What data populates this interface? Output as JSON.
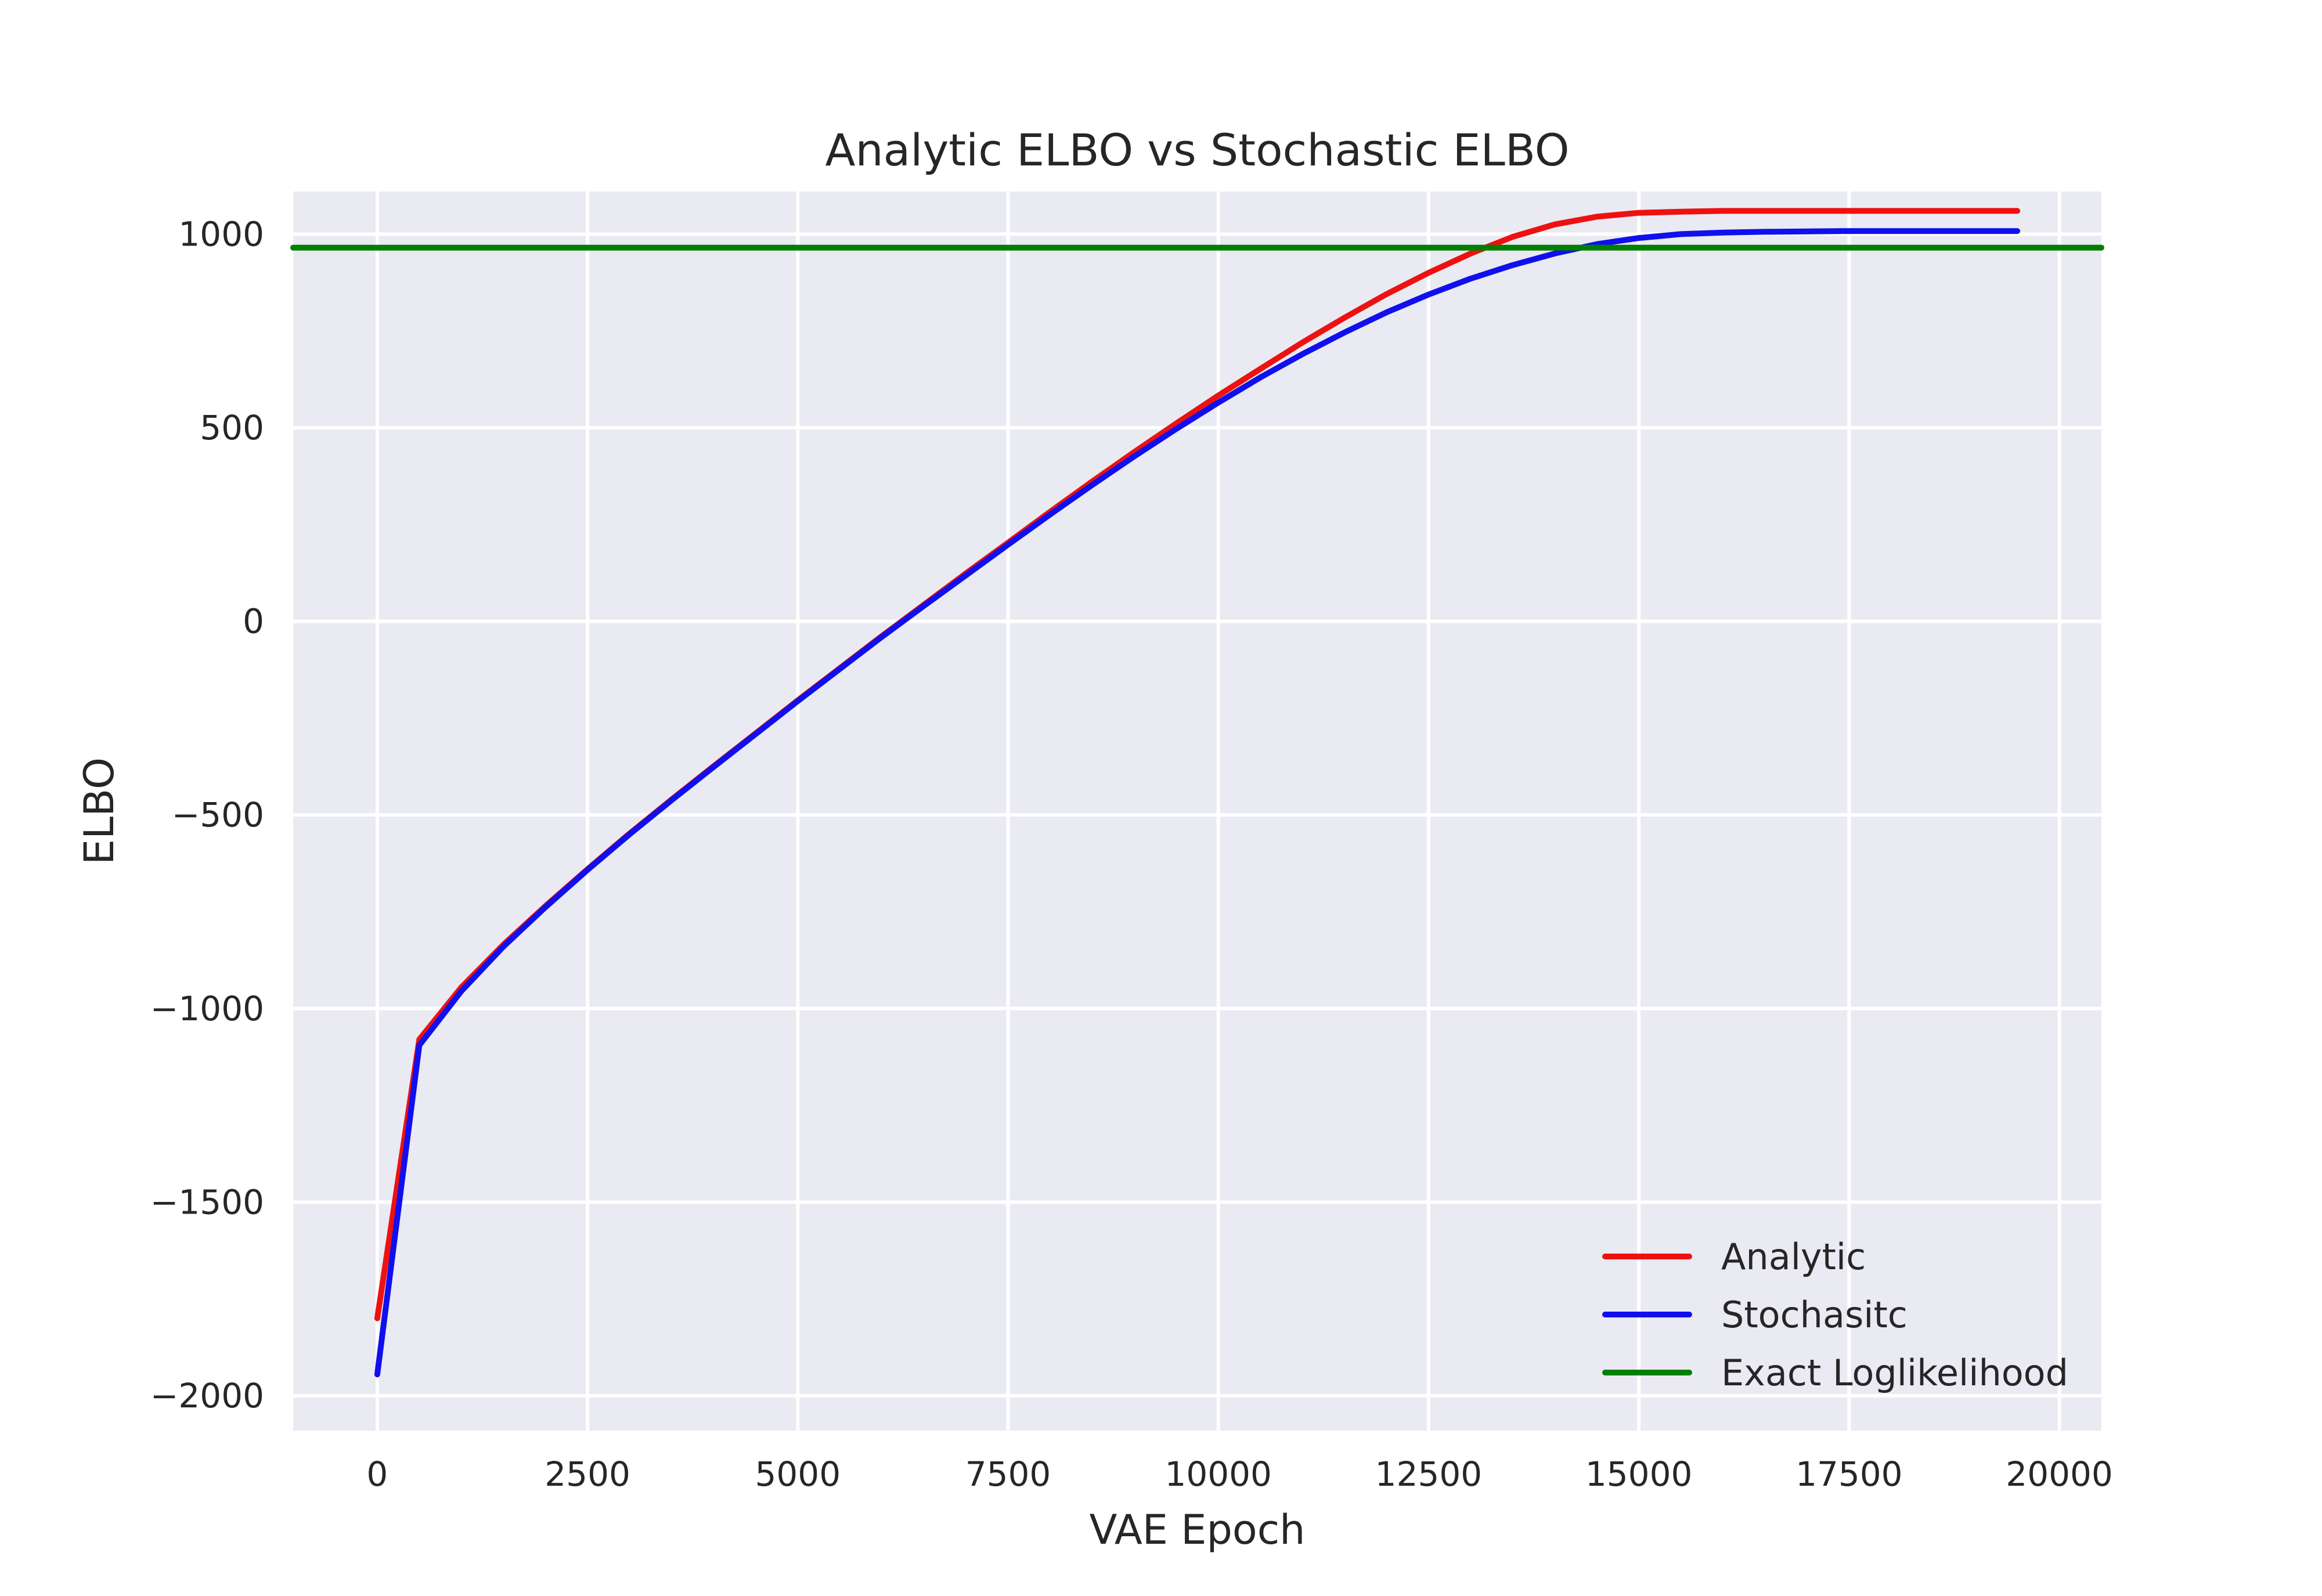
{
  "chart_data": {
    "type": "line",
    "title": "Analytic ELBO vs Stochastic ELBO",
    "xlabel": "VAE Epoch",
    "ylabel": "ELBO",
    "xlim": [
      -1000,
      20500
    ],
    "ylim": [
      -2090,
      1110
    ],
    "xticks": [
      0,
      2500,
      5000,
      7500,
      10000,
      12500,
      15000,
      17500,
      20000
    ],
    "yticks": [
      -2000,
      -1500,
      -1000,
      -500,
      0,
      500,
      1000
    ],
    "grid": true,
    "background": "#EAEAF2",
    "legend_position": "lower-right",
    "series": [
      {
        "name": "Analytic",
        "color": "#EE1111",
        "x": [
          0,
          500,
          1000,
          1500,
          2000,
          2500,
          3000,
          3500,
          4000,
          4500,
          5000,
          5500,
          6000,
          6500,
          7000,
          7500,
          8000,
          8500,
          9000,
          9500,
          10000,
          10500,
          11000,
          11500,
          12000,
          12500,
          13000,
          13500,
          14000,
          14500,
          15000,
          15500,
          16000,
          16500,
          17000,
          17500,
          18000,
          18500,
          19000,
          19500
        ],
        "values": [
          -1800,
          -1080,
          -945,
          -835,
          -735,
          -640,
          -548,
          -460,
          -374,
          -289,
          -204,
          -121,
          -38,
          43,
          124,
          203,
          283,
          361,
          437,
          511,
          583,
          652,
          720,
          784,
          845,
          900,
          950,
          993,
          1025,
          1045,
          1055,
          1058,
          1060,
          1060,
          1060,
          1060,
          1060,
          1060,
          1060,
          1060
        ]
      },
      {
        "name": "Stochasitc",
        "color": "#1010EE",
        "x": [
          0,
          500,
          1000,
          1500,
          2000,
          2500,
          3000,
          3500,
          4000,
          4500,
          5000,
          5500,
          6000,
          6500,
          7000,
          7500,
          8000,
          8500,
          9000,
          9500,
          10000,
          10500,
          11000,
          11500,
          12000,
          12500,
          13000,
          13500,
          14000,
          14500,
          15000,
          15500,
          16000,
          16500,
          17000,
          17500,
          18000,
          18500,
          19000,
          19500
        ],
        "values": [
          -1945,
          -1095,
          -955,
          -840,
          -738,
          -642,
          -550,
          -462,
          -376,
          -291,
          -206,
          -123,
          -40,
          40,
          119,
          198,
          276,
          352,
          426,
          497,
          565,
          630,
          690,
          746,
          798,
          844,
          885,
          920,
          950,
          974,
          990,
          1000,
          1004,
          1006,
          1007,
          1008,
          1008,
          1008,
          1008,
          1008
        ]
      },
      {
        "name": "Exact Loglikelihood",
        "color": "#007F00",
        "x": [
          -1000,
          20500
        ],
        "values": [
          965,
          965
        ]
      }
    ]
  }
}
